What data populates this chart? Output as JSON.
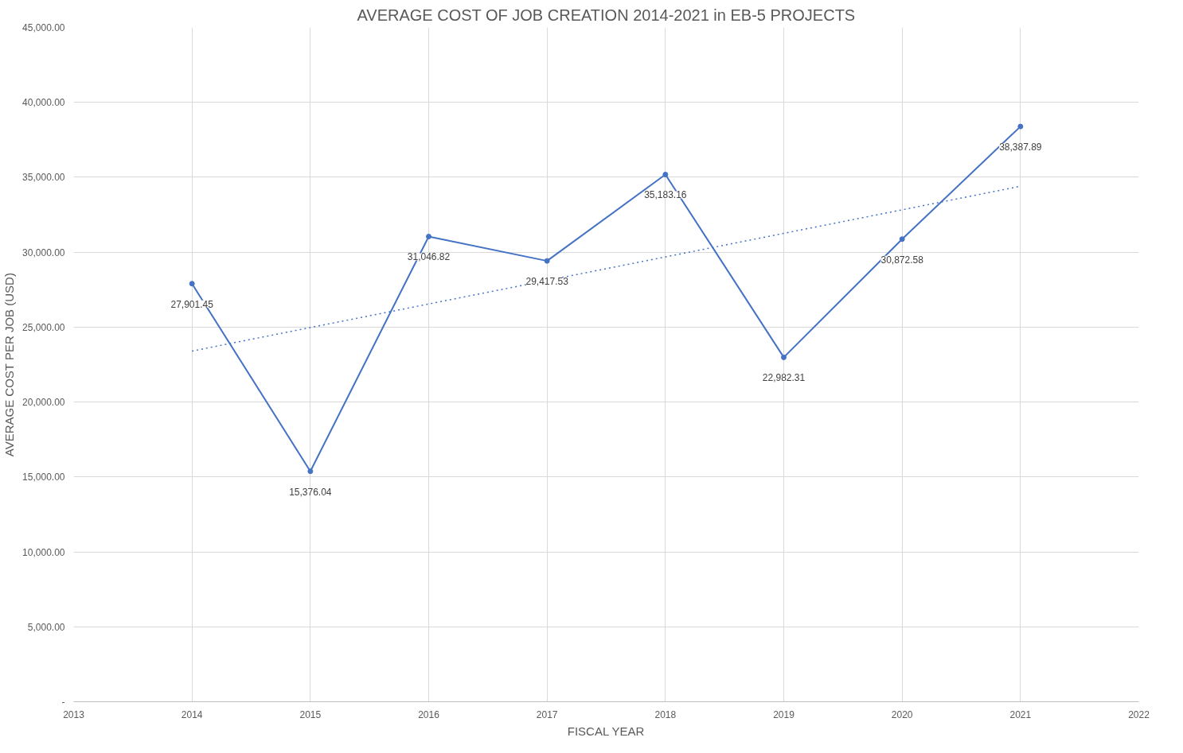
{
  "chart_data": {
    "type": "line",
    "title": "AVERAGE COST OF JOB CREATION 2014-2021 in EB-5 PROJECTS",
    "xlabel": "FISCAL YEAR",
    "ylabel": "AVERAGE COST PER JOB (USD)",
    "x": [
      2014,
      2015,
      2016,
      2017,
      2018,
      2019,
      2020,
      2021
    ],
    "series": [
      {
        "color": "#4472c4",
        "values": [
          27901.45,
          15376.04,
          31046.82,
          29417.53,
          35183.16,
          22982.31,
          30872.58,
          38387.89
        ],
        "marker": "circle",
        "line_style": "solid",
        "value_labels": [
          "27,901.45",
          "15,376.04",
          "31,046.82",
          "29,417.53",
          "35,183.16",
          "22,982.31",
          "30,872.58",
          "38,387.89"
        ]
      },
      {
        "type": "line",
        "color": "#4472c4",
        "x": [
          2014,
          2021
        ],
        "values": [
          23400,
          34400
        ],
        "marker": "none",
        "line_style": "dotted"
      }
    ],
    "xlim": [
      2013,
      2022
    ],
    "xticks": [
      2013,
      2014,
      2015,
      2016,
      2017,
      2018,
      2019,
      2020,
      2021,
      2022
    ],
    "ylim": [
      0,
      45000
    ],
    "yticks": [
      {
        "value": 0,
        "label": "-"
      },
      {
        "value": 5000,
        "label": "5,000.00"
      },
      {
        "value": 10000,
        "label": "10,000.00"
      },
      {
        "value": 15000,
        "label": "15,000.00"
      },
      {
        "value": 20000,
        "label": "20,000.00"
      },
      {
        "value": 25000,
        "label": "25,000.00"
      },
      {
        "value": 30000,
        "label": "30,000.00"
      },
      {
        "value": 35000,
        "label": "35,000.00"
      },
      {
        "value": 40000,
        "label": "40,000.00"
      },
      {
        "value": 45000,
        "label": "45,000.00"
      }
    ],
    "grid": true
  }
}
